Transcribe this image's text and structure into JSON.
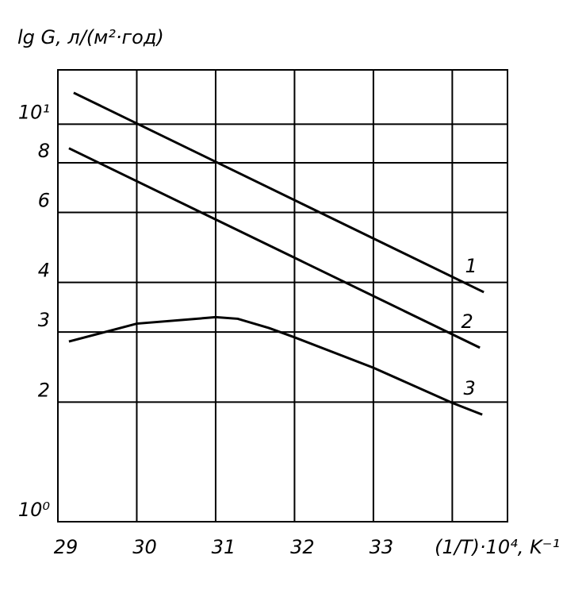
{
  "chart_data": {
    "type": "line",
    "y_label": "lg G, л/(м²·год)",
    "x_label": "(1/T)·10⁴, K⁻¹",
    "xlim": [
      29,
      34.7
    ],
    "ylim": [
      1,
      13.7
    ],
    "log_y": true,
    "grid": true,
    "xticks": [
      29,
      30,
      31,
      32,
      33
    ],
    "xgrid": [
      30,
      31,
      32,
      33,
      34
    ],
    "yticks": [
      {
        "value": 1,
        "label": "10⁰"
      },
      2,
      3,
      4,
      6,
      8,
      {
        "value": 10,
        "label": "10¹"
      }
    ],
    "series": [
      {
        "name": "1",
        "color": "#000000",
        "x": [
          29.2,
          34.4
        ],
        "values": [
          12.0,
          3.78
        ]
      },
      {
        "name": "2",
        "color": "#000000",
        "x": [
          29.14,
          34.35
        ],
        "values": [
          8.7,
          2.74
        ]
      },
      {
        "name": "3",
        "color": "#000000",
        "x": [
          29.14,
          30,
          31,
          31.28,
          31.68,
          32,
          33,
          34,
          34.38
        ],
        "values": [
          2.84,
          3.15,
          3.27,
          3.24,
          3.07,
          2.91,
          2.44,
          1.99,
          1.86
        ]
      }
    ]
  }
}
